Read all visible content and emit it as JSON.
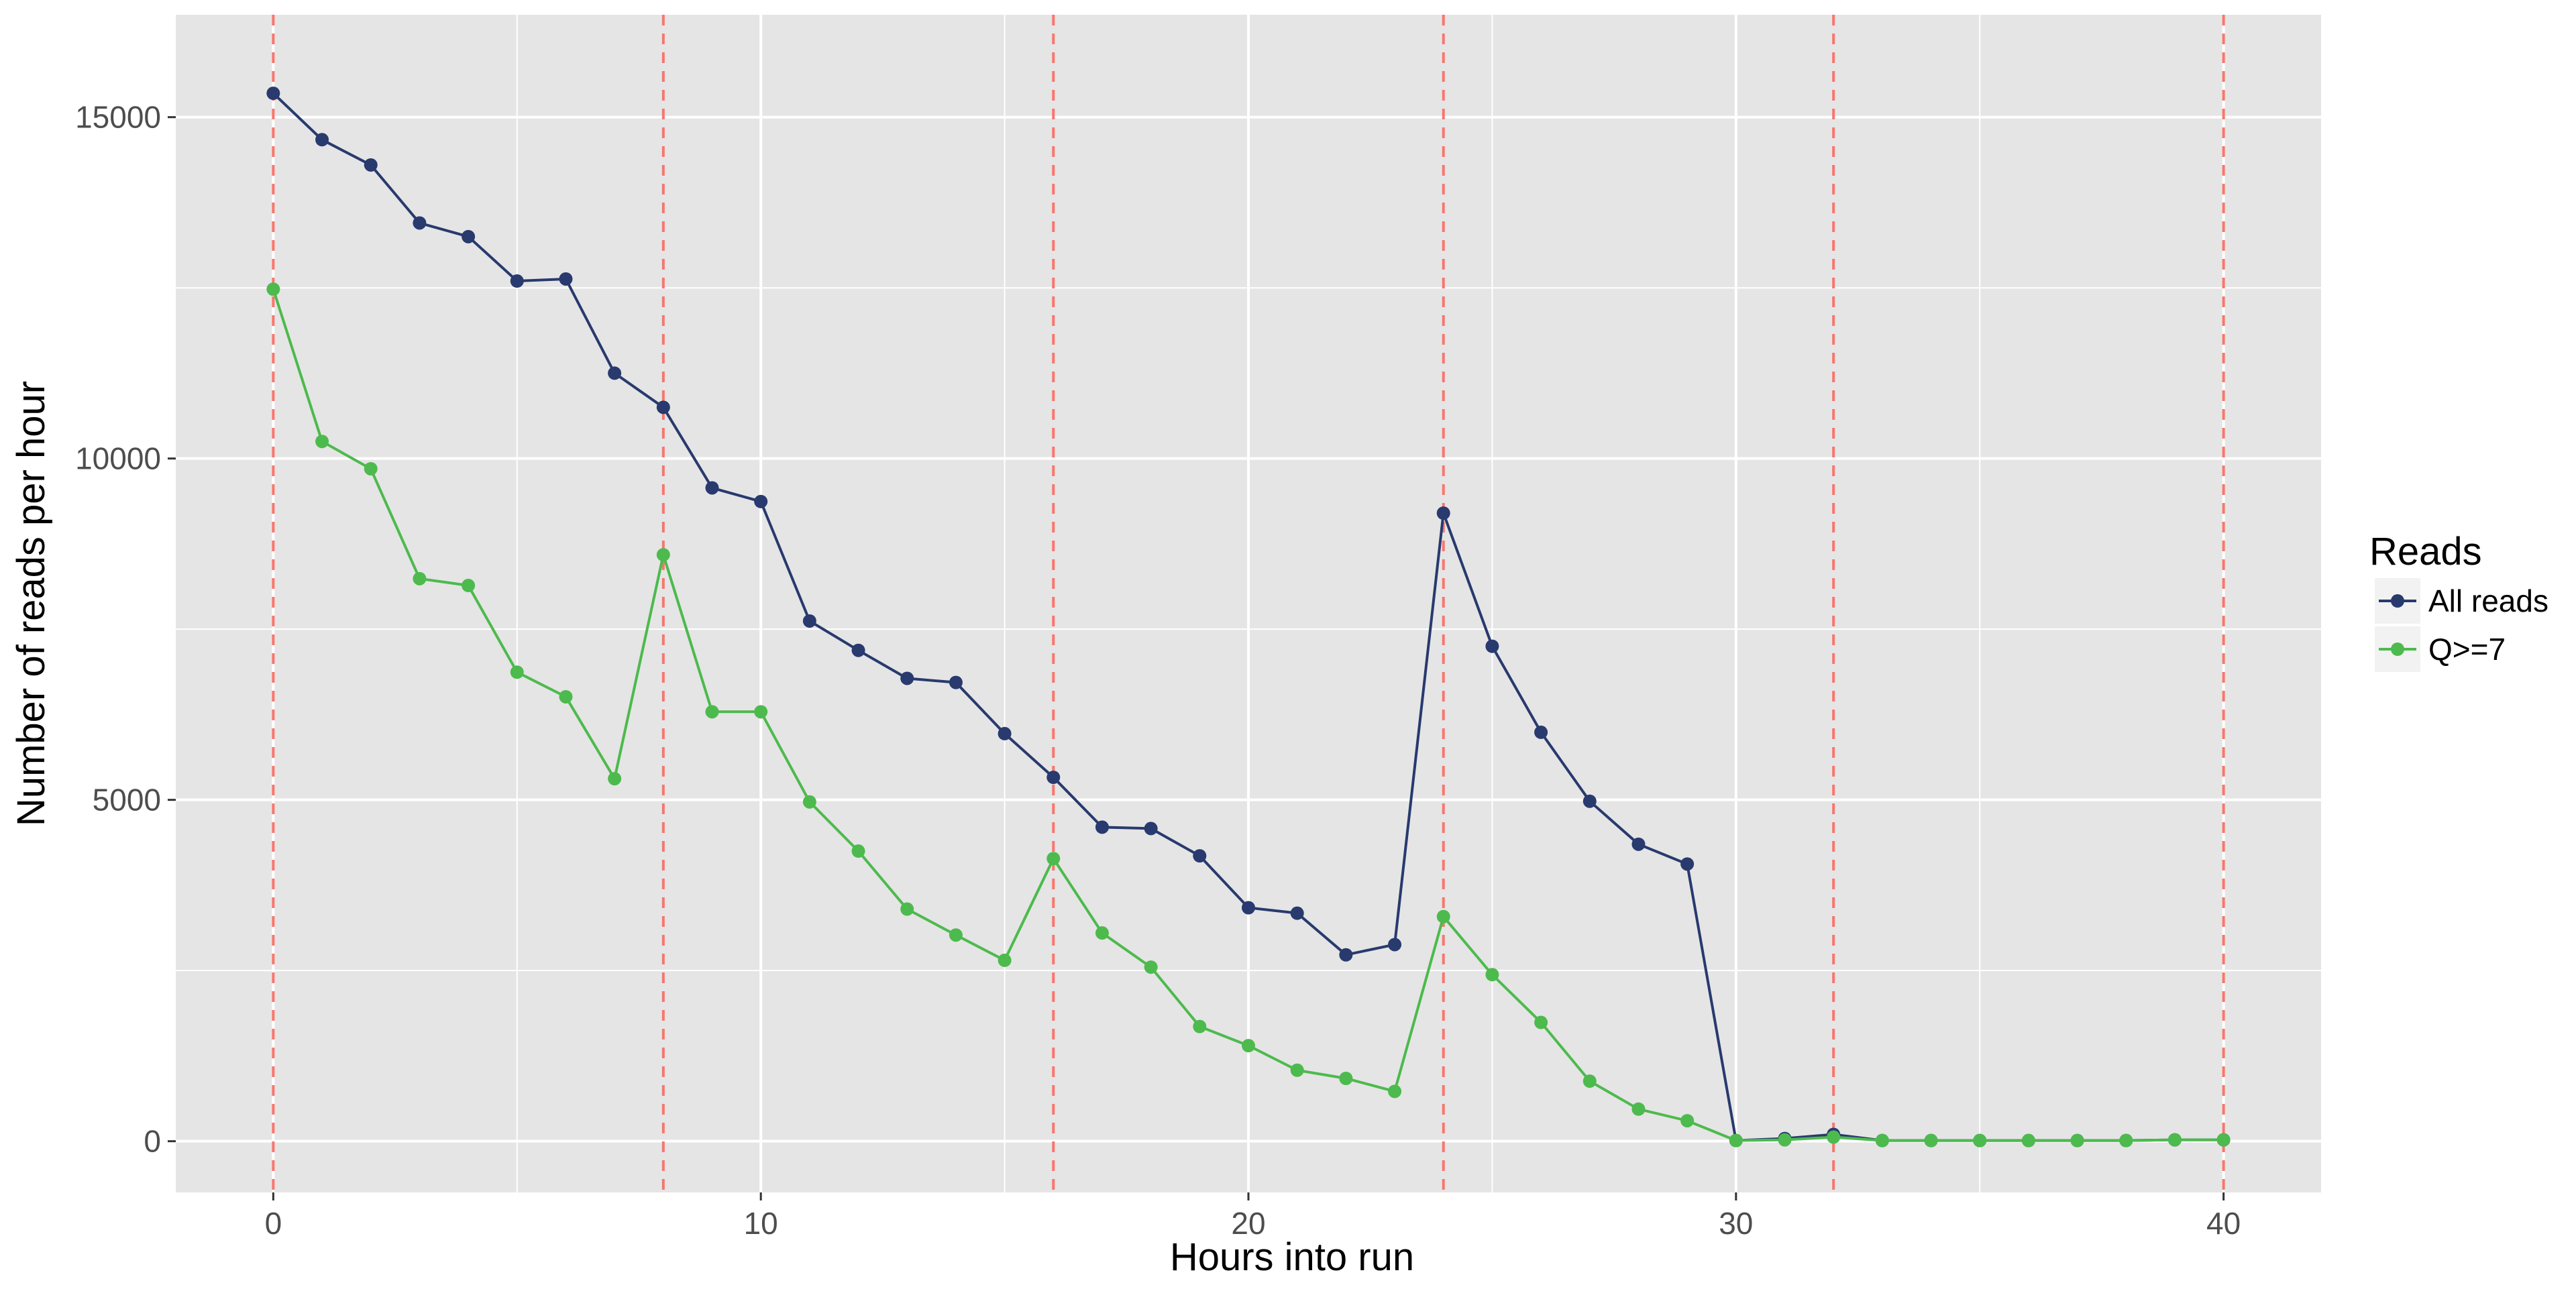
{
  "chart_data": {
    "type": "line",
    "title": "",
    "xlabel": "Hours into run",
    "ylabel": "Number of reads per hour",
    "xlim": [
      -2,
      42
    ],
    "ylim": [
      -750,
      16500
    ],
    "x_ticks": [
      0,
      10,
      20,
      30,
      40
    ],
    "x_tick_labels": [
      "0",
      "10",
      "20",
      "30",
      "40"
    ],
    "y_ticks": [
      0,
      5000,
      10000,
      15000
    ],
    "y_tick_labels": [
      "0",
      "5000",
      "10000",
      "15000"
    ],
    "x_minor_gridlines": [
      5,
      15,
      25,
      35
    ],
    "y_minor_gridlines": [
      2500,
      7500,
      12500
    ],
    "grid": true,
    "vertical_reference_lines": [
      0,
      8,
      16,
      24,
      32,
      40
    ],
    "reference_line_color": "#F8766D",
    "panel_background": "#E5E5E5",
    "gridline_color": "#FFFFFF",
    "legend": {
      "title": "Reads",
      "position": "right",
      "entries": [
        "All reads",
        "Q>=7"
      ]
    },
    "series": [
      {
        "name": "All reads",
        "color": "#283A6E",
        "x": [
          0,
          1,
          2,
          3,
          4,
          5,
          6,
          7,
          8,
          9,
          10,
          11,
          12,
          13,
          14,
          15,
          16,
          17,
          18,
          19,
          20,
          21,
          22,
          23,
          24,
          25,
          26,
          27,
          28,
          29,
          30,
          31,
          32,
          33,
          34,
          35,
          36,
          37,
          38,
          39,
          40
        ],
        "values": [
          15350,
          14670,
          14300,
          13450,
          13250,
          12600,
          12630,
          11250,
          10750,
          9570,
          9370,
          7620,
          7190,
          6780,
          6720,
          5970,
          5330,
          4600,
          4580,
          4180,
          3420,
          3340,
          2730,
          2880,
          9200,
          7250,
          5990,
          4980,
          4350,
          4060,
          10,
          40,
          100,
          10,
          10,
          10,
          10,
          10,
          10,
          20,
          20
        ]
      },
      {
        "name": "Q>=7",
        "color": "#4DBA4D",
        "x": [
          0,
          1,
          2,
          3,
          4,
          5,
          6,
          7,
          8,
          9,
          10,
          11,
          12,
          13,
          14,
          15,
          16,
          17,
          18,
          19,
          20,
          21,
          22,
          23,
          24,
          25,
          26,
          27,
          28,
          29,
          30,
          31,
          32,
          33,
          34,
          35,
          36,
          37,
          38,
          39,
          40
        ],
        "values": [
          12480,
          10250,
          9850,
          8240,
          8140,
          6870,
          6510,
          5310,
          8590,
          6290,
          6290,
          4970,
          4250,
          3400,
          3020,
          2650,
          4140,
          3050,
          2550,
          1680,
          1400,
          1040,
          920,
          730,
          3290,
          2440,
          1740,
          880,
          470,
          300,
          10,
          20,
          60,
          10,
          10,
          10,
          10,
          10,
          10,
          20,
          20
        ]
      }
    ]
  }
}
